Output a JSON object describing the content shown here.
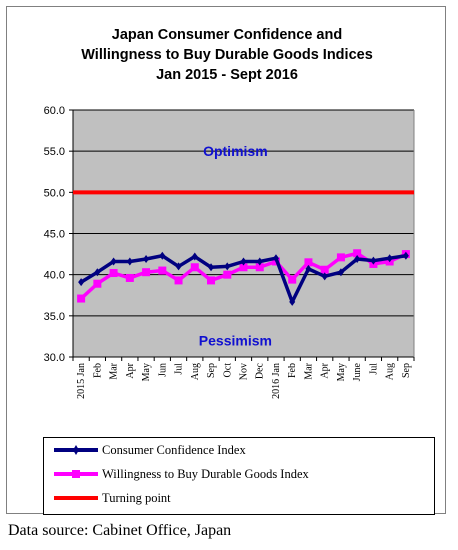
{
  "title_lines": [
    "Japan Consumer Confidence and",
    "Willingness to Buy Durable Goods Indices",
    "Jan 2015 - Sept 2016"
  ],
  "source": "Data source: Cabinet Office, Japan",
  "colors": {
    "plot_bg": "#c0c0c0",
    "consumer": "#000080",
    "willingness": "#ff00ff",
    "turning": "#ff0000",
    "annotation": "#1010d0"
  },
  "chart_data": {
    "type": "line",
    "title": "Japan Consumer Confidence and Willingness to Buy Durable Goods Indices Jan 2015 - Sept 2016",
    "categories": [
      "2015 Jan",
      "Feb",
      "Mar",
      "Apr",
      "May",
      "Jun",
      "Jul",
      "Aug",
      "Sep",
      "Oct",
      "Nov",
      "Dec",
      "2016 Jan",
      "Feb",
      "Mar",
      "Apr",
      "May",
      "June",
      "Jul",
      "Aug",
      "Sep"
    ],
    "ylim": [
      30,
      60
    ],
    "yticks": [
      "30.0",
      "35.0",
      "40.0",
      "45.0",
      "50.0",
      "55.0",
      "60.0"
    ],
    "grid": true,
    "legend_position": "bottom",
    "annotations": [
      {
        "text": "Optimism",
        "x": "Oct",
        "y": 55
      },
      {
        "text": "Pessimism",
        "x": "Oct",
        "y": 32
      }
    ],
    "series": [
      {
        "name": "Consumer Confidence Index",
        "values": [
          39.1,
          40.3,
          41.6,
          41.6,
          41.9,
          42.3,
          41.0,
          42.2,
          40.9,
          41.0,
          41.6,
          41.6,
          42.0,
          36.7,
          40.7,
          39.8,
          40.3,
          41.9,
          41.7,
          42.0,
          42.3
        ]
      },
      {
        "name": "Willingness to Buy Durable Goods Index",
        "values": [
          37.1,
          38.9,
          40.2,
          39.6,
          40.3,
          40.5,
          39.3,
          40.9,
          39.3,
          40.0,
          40.9,
          40.9,
          41.6,
          39.4,
          41.5,
          40.6,
          42.1,
          42.6,
          41.3,
          41.6,
          42.5
        ]
      },
      {
        "name": "Turning point",
        "values": [
          50,
          50,
          50,
          50,
          50,
          50,
          50,
          50,
          50,
          50,
          50,
          50,
          50,
          50,
          50,
          50,
          50,
          50,
          50,
          50,
          50
        ]
      }
    ]
  }
}
